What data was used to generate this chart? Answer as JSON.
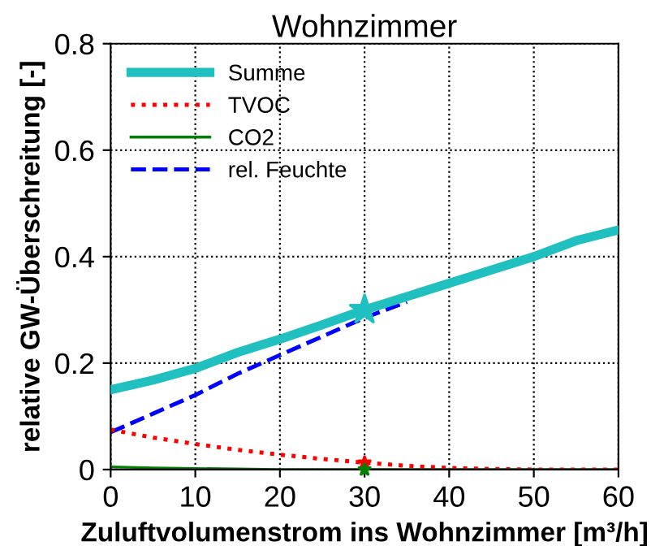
{
  "chart_data": {
    "type": "line",
    "title": "Wohnzimmer",
    "xlabel": "Zuluftvolumenstrom ins Wohnzimmer [m³/h]",
    "ylabel": "relative GW-Überschreitung [-]",
    "x": [
      0,
      5,
      10,
      15,
      20,
      25,
      30,
      35,
      40,
      45,
      50,
      55,
      60
    ],
    "xlim": [
      0,
      60
    ],
    "xticks": [
      0,
      10,
      20,
      30,
      40,
      50,
      60
    ],
    "ylim": [
      0,
      0.8
    ],
    "yticks": [
      0,
      0.2,
      0.4,
      0.6,
      0.8
    ],
    "grid": true,
    "legend": "top left",
    "marker": "none",
    "series": [
      {
        "name": "Summe",
        "color": "#20c0c0",
        "line_style": "solid",
        "values": [
          0.15,
          0.168,
          0.19,
          0.22,
          0.245,
          0.272,
          0.3,
          0.325,
          0.35,
          0.375,
          0.4,
          0.43,
          0.45
        ]
      },
      {
        "name": "TVOC",
        "color": "#ff0000",
        "line_style": "dotted",
        "values": [
          0.075,
          0.06,
          0.048,
          0.037,
          0.028,
          0.02,
          0.013,
          0.007,
          0.003,
          0.001,
          0,
          0,
          0
        ]
      },
      {
        "name": "CO2",
        "color": "#008000",
        "line_style": "solid",
        "values": [
          0.005,
          0.003,
          0.002,
          0.001,
          0,
          0,
          0,
          0,
          0,
          0,
          0,
          0,
          0
        ]
      },
      {
        "name": "rel. Feuchte",
        "color": "#0000ff",
        "line_style": "dashed",
        "values": [
          0.07,
          0.105,
          0.14,
          0.18,
          0.215,
          0.25,
          0.285,
          0.315,
          null,
          null,
          null,
          null,
          null
        ]
      },
      {
        "type": "scatter",
        "marker": "star",
        "color": "#20c0c0",
        "values": [
          null,
          null,
          null,
          null,
          null,
          null,
          0.3,
          null,
          null,
          null,
          null,
          null,
          null
        ]
      },
      {
        "type": "scatter",
        "marker": "star",
        "color": "#ff0000",
        "values": [
          null,
          null,
          null,
          null,
          null,
          null,
          0.013,
          null,
          null,
          null,
          null,
          null,
          null
        ]
      },
      {
        "type": "scatter",
        "marker": "star",
        "color": "#008000",
        "values": [
          null,
          null,
          null,
          null,
          null,
          null,
          0,
          null,
          null,
          null,
          null,
          null,
          null
        ]
      }
    ]
  }
}
